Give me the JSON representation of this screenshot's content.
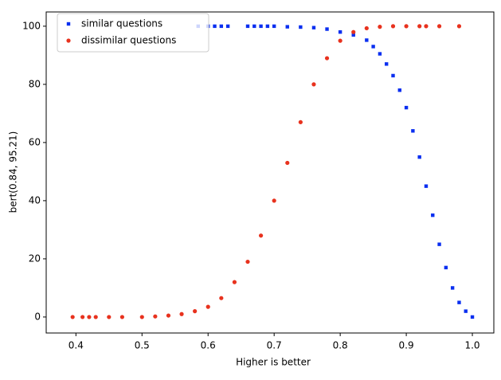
{
  "chart_data": {
    "type": "scatter",
    "xlabel": "Higher is better",
    "ylabel": "bert(0.84, 95.21)",
    "xlim": [
      0.355,
      1.0325
    ],
    "ylim": [
      -5.5,
      104.9
    ],
    "xticks": [
      0.4,
      0.5,
      0.6,
      0.7,
      0.8,
      0.9,
      {
        "value": 1.0,
        "label": "1.0"
      }
    ],
    "yticks": [
      0,
      20,
      40,
      60,
      80,
      100
    ],
    "legend": "upper left",
    "series": [
      {
        "name": "similar questions",
        "color": "#0a2ff0",
        "marker": "square",
        "x": [
          0.585,
          0.6,
          0.61,
          0.62,
          0.63,
          0.66,
          0.67,
          0.68,
          0.69,
          0.7,
          0.72,
          0.74,
          0.76,
          0.78,
          0.8,
          0.82,
          0.84,
          0.85,
          0.86,
          0.87,
          0.88,
          0.89,
          0.9,
          0.91,
          0.92,
          0.93,
          0.94,
          0.95,
          0.96,
          0.97,
          0.98,
          0.99,
          1.0
        ],
        "values": [
          100,
          100,
          100,
          100,
          100,
          100,
          100,
          100,
          100,
          100,
          99.8,
          99.7,
          99.5,
          99,
          98,
          97,
          95.2,
          93,
          90.5,
          87,
          83,
          78,
          72,
          64,
          55,
          45,
          35,
          25,
          17,
          10,
          5,
          2,
          0
        ]
      },
      {
        "name": "dissimilar questions",
        "color": "#e8321e",
        "marker": "circle",
        "x": [
          0.395,
          0.41,
          0.42,
          0.43,
          0.45,
          0.47,
          0.5,
          0.52,
          0.54,
          0.56,
          0.58,
          0.6,
          0.62,
          0.64,
          0.66,
          0.68,
          0.7,
          0.72,
          0.74,
          0.76,
          0.78,
          0.8,
          0.82,
          0.84,
          0.86,
          0.88,
          0.9,
          0.92,
          0.93,
          0.95,
          0.98
        ],
        "values": [
          0,
          0,
          0,
          0,
          0,
          0,
          0,
          0.2,
          0.5,
          1,
          2,
          3.5,
          6.5,
          12,
          19,
          28,
          40,
          53,
          67,
          80,
          89,
          95,
          98,
          99.3,
          99.8,
          100,
          100,
          100,
          100,
          100,
          100
        ]
      }
    ]
  }
}
